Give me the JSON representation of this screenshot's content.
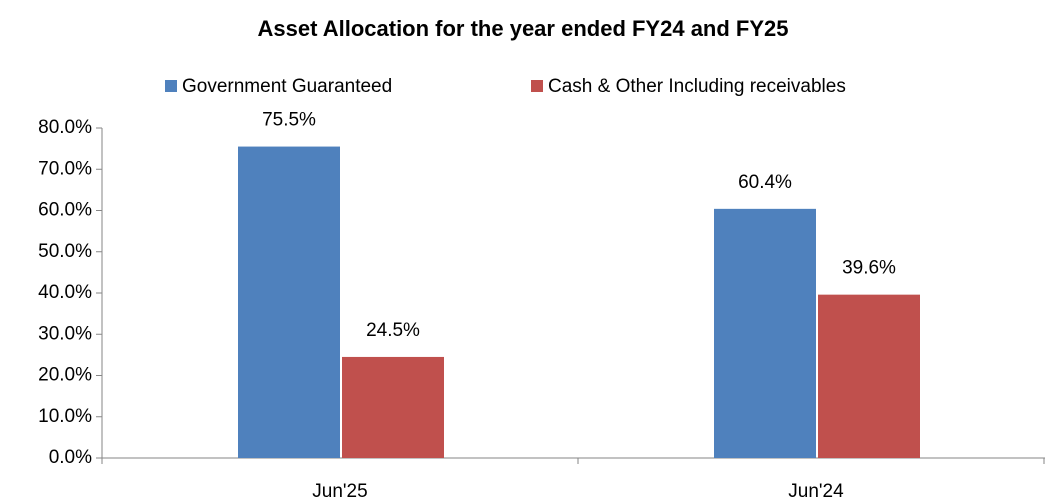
{
  "chart_data": {
    "type": "bar",
    "title": "Asset Allocation for the year ended FY24 and FY25",
    "categories": [
      "Jun'25",
      "Jun'24"
    ],
    "series": [
      {
        "name": "Government Guaranteed",
        "color": "#4f81bd",
        "values": [
          75.5,
          60.4
        ],
        "value_labels": [
          "75.5%",
          "60.4%"
        ]
      },
      {
        "name": "Cash  &  Other Including receivables",
        "color": "#c0504d",
        "values": [
          24.5,
          39.6
        ],
        "value_labels": [
          "24.5%",
          "39.6%"
        ]
      }
    ],
    "ylim": [
      0,
      80
    ],
    "yticks": [
      {
        "value": 0,
        "label": "0.0%"
      },
      {
        "value": 10,
        "label": "10.0%"
      },
      {
        "value": 20,
        "label": "20.0%"
      },
      {
        "value": 30,
        "label": "30.0%"
      },
      {
        "value": 40,
        "label": "40.0%"
      },
      {
        "value": 50,
        "label": "50.0%"
      },
      {
        "value": 60,
        "label": "60.0%"
      },
      {
        "value": 70,
        "label": "70.0%"
      },
      {
        "value": 80,
        "label": "80.0%"
      }
    ],
    "legend": "top",
    "grid": false
  }
}
